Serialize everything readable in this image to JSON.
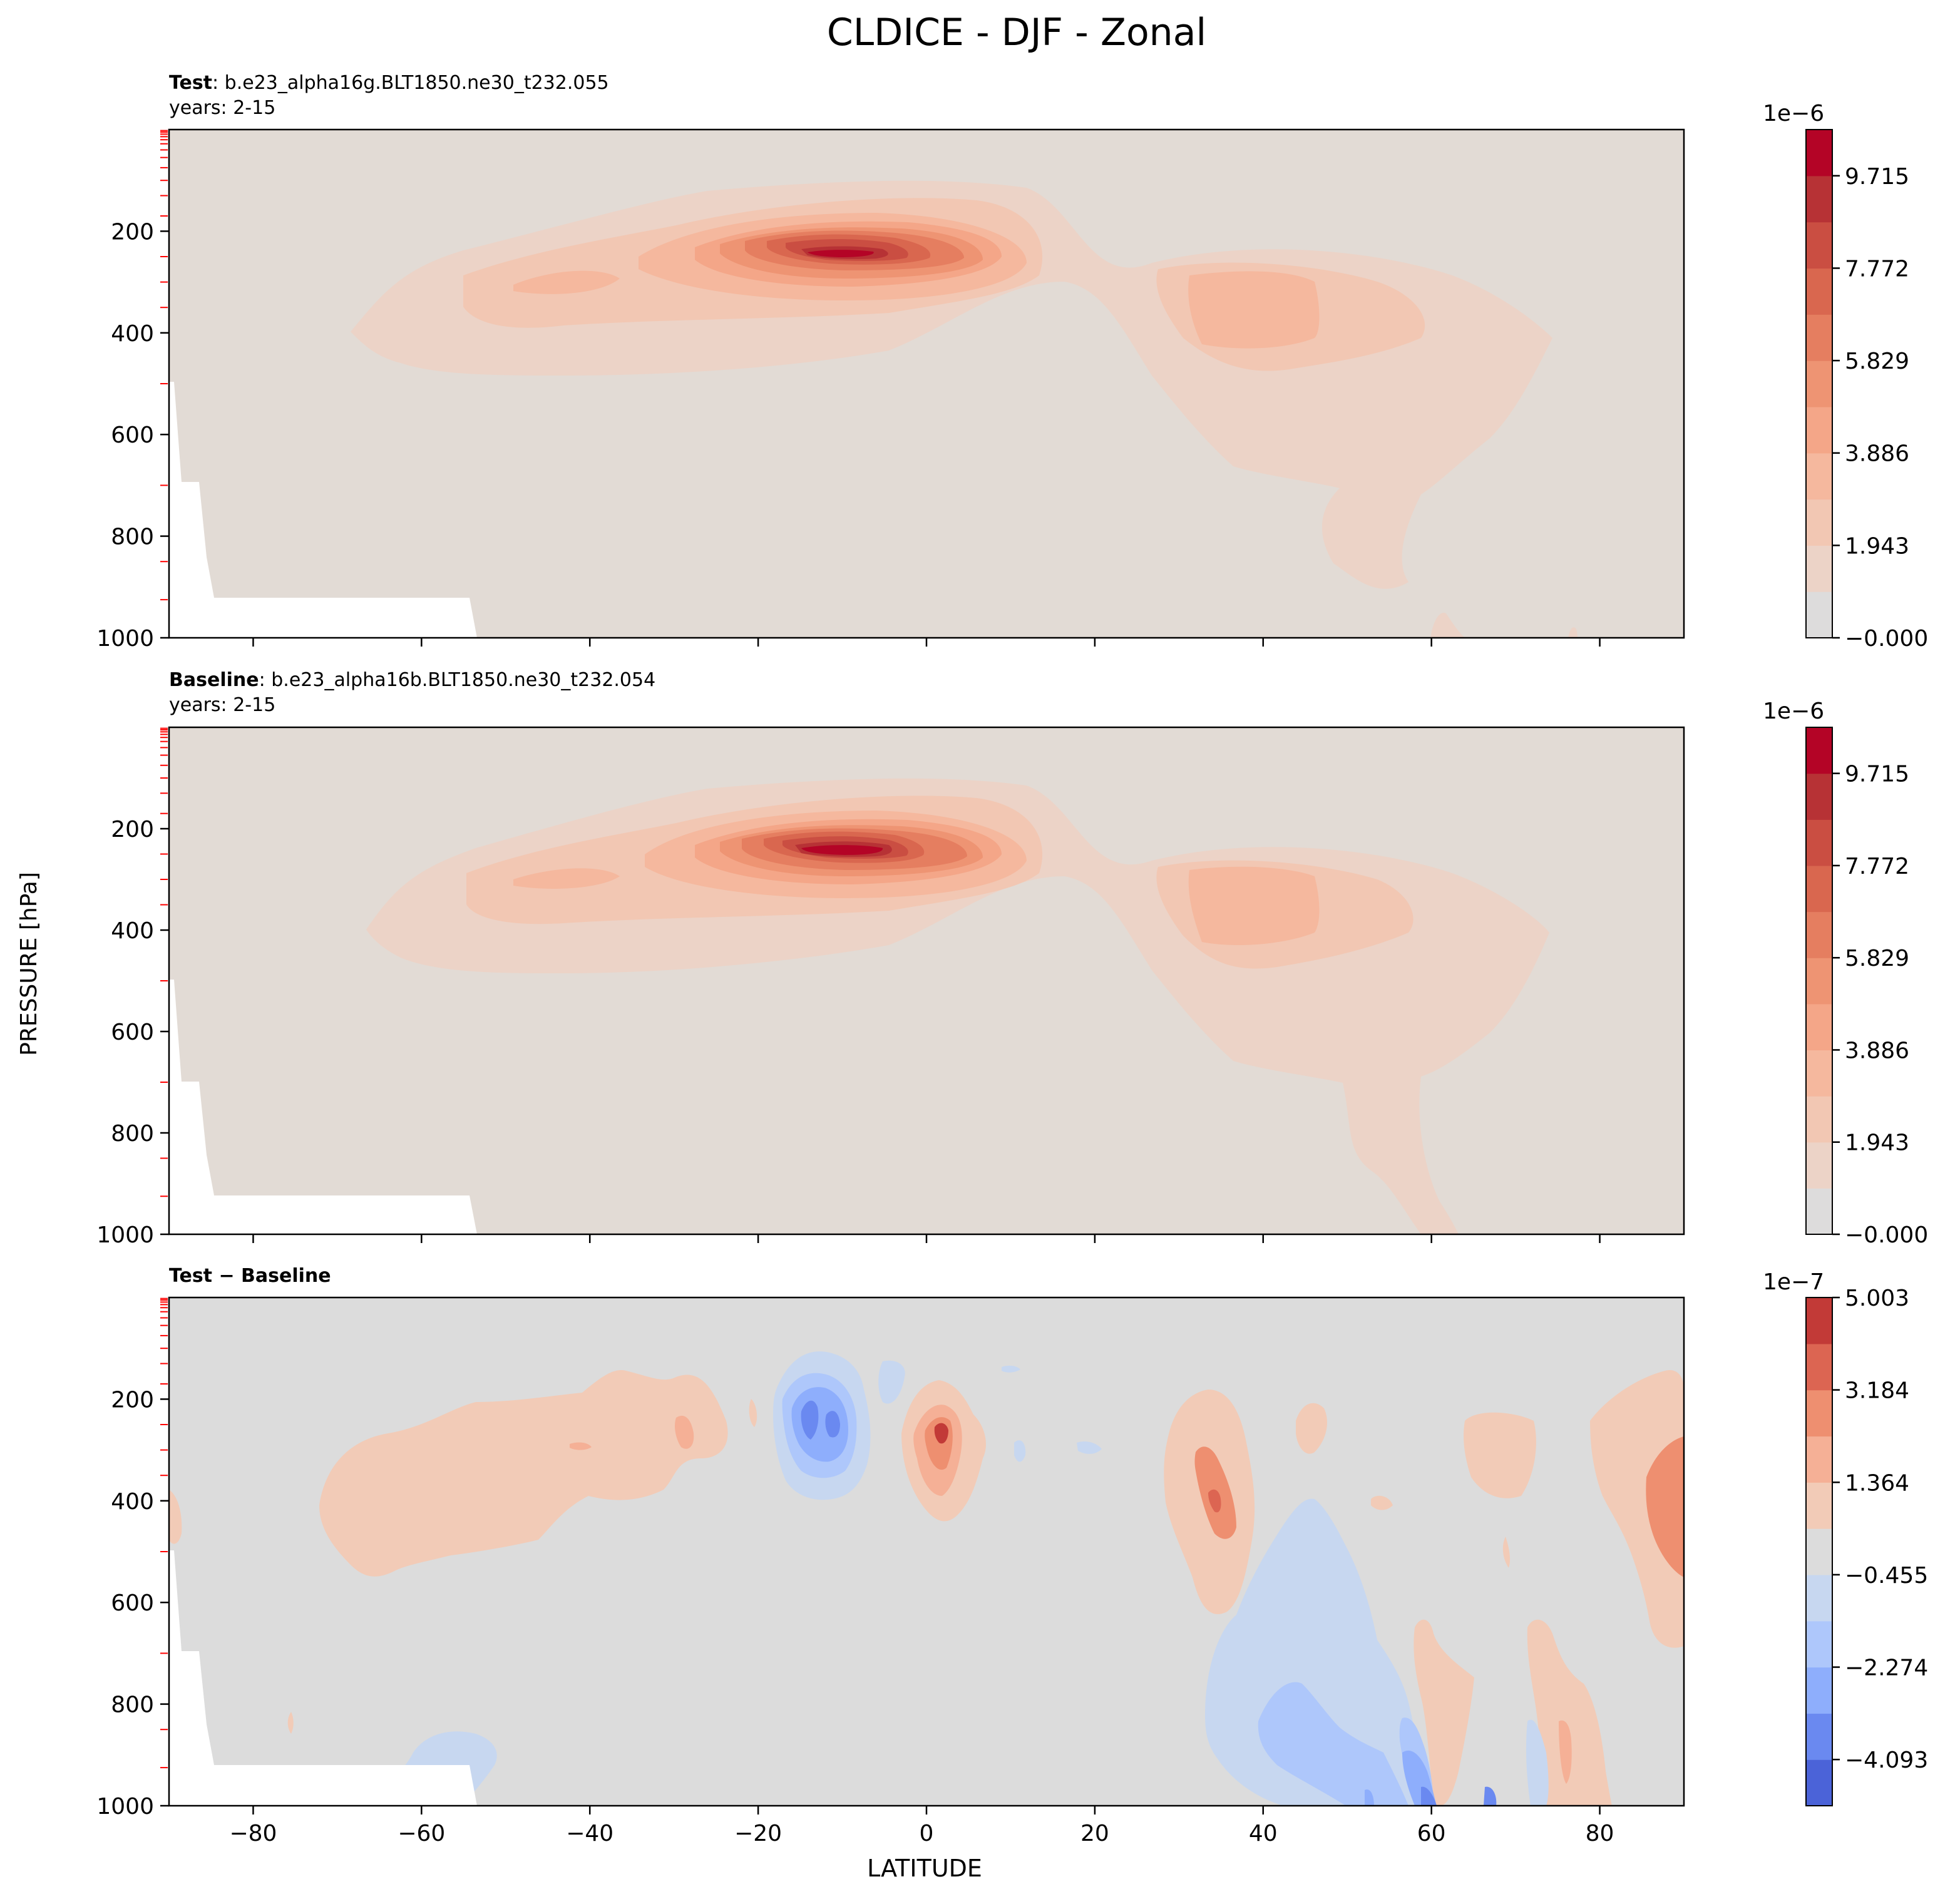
{
  "figure": {
    "title": "CLDICE - DJF - Zonal",
    "ylabel": "PRESSURE [hPa]",
    "xlabel": "LATITUDE"
  },
  "chart_data": [
    {
      "type": "heatmap",
      "panel": "test",
      "label_bold": "Test",
      "label_rest": ": b.e23_alpha16g.BLT1850.ne30_t232.055",
      "years": "years: 2-15",
      "xlim": [
        -90,
        90
      ],
      "ylim": [
        1000,
        0
      ],
      "x_ticks": [
        -80,
        -60,
        -40,
        -20,
        0,
        20,
        40,
        60,
        80
      ],
      "y_ticks": [
        200,
        400,
        600,
        800,
        1000
      ],
      "x_tick_labels_shown": false,
      "colorbar": {
        "exponent": "1e−6",
        "tick_labels": [
          "9.715",
          "7.772",
          "5.829",
          "3.886",
          "1.943",
          "−0.000"
        ],
        "colors": [
          "#dddcdc",
          "#ecd3c7",
          "#f2c7b3",
          "#f5b89e",
          "#f4a688",
          "#ee9473",
          "#e57e60",
          "#d9674f",
          "#ca4e42",
          "#b73235",
          "#b40426"
        ]
      },
      "features": [
        {
          "name": "upper-tropical-maximum",
          "lat": -9,
          "pressure_hPa": 250,
          "value": 1e-05
        },
        {
          "name": "sh-midlat-band",
          "lat": -45,
          "pressure_hPa": 300,
          "value": 3e-06
        },
        {
          "name": "nh-midlat-maximum",
          "lat": 35,
          "pressure_hPa": 350,
          "value": 3.5e-06
        }
      ]
    },
    {
      "type": "heatmap",
      "panel": "baseline",
      "label_bold": "Baseline",
      "label_rest": ": b.e23_alpha16b.BLT1850.ne30_t232.054",
      "years": "years: 2-15",
      "xlim": [
        -90,
        90
      ],
      "ylim": [
        1000,
        0
      ],
      "x_ticks": [
        -80,
        -60,
        -40,
        -20,
        0,
        20,
        40,
        60,
        80
      ],
      "y_ticks": [
        200,
        400,
        600,
        800,
        1000
      ],
      "x_tick_labels_shown": false,
      "colorbar": {
        "exponent": "1e−6",
        "tick_labels": [
          "9.715",
          "7.772",
          "5.829",
          "3.886",
          "1.943",
          "−0.000"
        ],
        "colors": [
          "#dddcdc",
          "#ecd3c7",
          "#f2c7b3",
          "#f5b89e",
          "#f4a688",
          "#ee9473",
          "#e57e60",
          "#d9674f",
          "#ca4e42",
          "#b73235",
          "#b40426"
        ]
      },
      "features": [
        {
          "name": "upper-tropical-maximum",
          "lat": -9,
          "pressure_hPa": 250,
          "value": 1e-05
        },
        {
          "name": "sh-midlat-band",
          "lat": -45,
          "pressure_hPa": 300,
          "value": 3e-06
        },
        {
          "name": "nh-midlat-maximum",
          "lat": 35,
          "pressure_hPa": 350,
          "value": 3.5e-06
        }
      ]
    },
    {
      "type": "heatmap",
      "panel": "difference",
      "label_bold": "Test − Baseline",
      "xlim": [
        -90,
        90
      ],
      "ylim": [
        1000,
        0
      ],
      "x_ticks": [
        -80,
        -60,
        -40,
        -20,
        0,
        20,
        40,
        60,
        80
      ],
      "x_tick_labels": [
        "−80",
        "−60",
        "−40",
        "−20",
        "0",
        "20",
        "40",
        "60",
        "80"
      ],
      "y_ticks": [
        200,
        400,
        600,
        800,
        1000
      ],
      "x_tick_labels_shown": true,
      "colorbar": {
        "exponent": "1e−7",
        "tick_labels": [
          "5.003",
          "3.184",
          "1.364",
          "−0.455",
          "−2.274",
          "−4.093"
        ],
        "colors": [
          "#4b63d8",
          "#6a89f0",
          "#8eaefc",
          "#aec7fb",
          "#c7d7f0",
          "#dcdcdc",
          "#f2cbb7",
          "#f5b096",
          "#ee8f70",
          "#dc6552",
          "#c23a37"
        ]
      },
      "features": [
        {
          "name": "negative-tropical-dipole",
          "lat": -13,
          "pressure_hPa": 250,
          "value": -4e-07
        },
        {
          "name": "positive-equatorial-maximum",
          "lat": 2,
          "pressure_hPa": 260,
          "value": 5e-07
        },
        {
          "name": "positive-nh-midlat",
          "lat": 35,
          "pressure_hPa": 390,
          "value": 2.5e-07
        },
        {
          "name": "negative-nh-lower",
          "lat": 55,
          "pressure_hPa": 850,
          "value": -3e-07
        },
        {
          "name": "positive-polar",
          "lat": 88,
          "pressure_hPa": 450,
          "value": 2.5e-07
        }
      ]
    }
  ],
  "y_tick_labels": [
    "200",
    "400",
    "600",
    "800",
    "1000"
  ]
}
